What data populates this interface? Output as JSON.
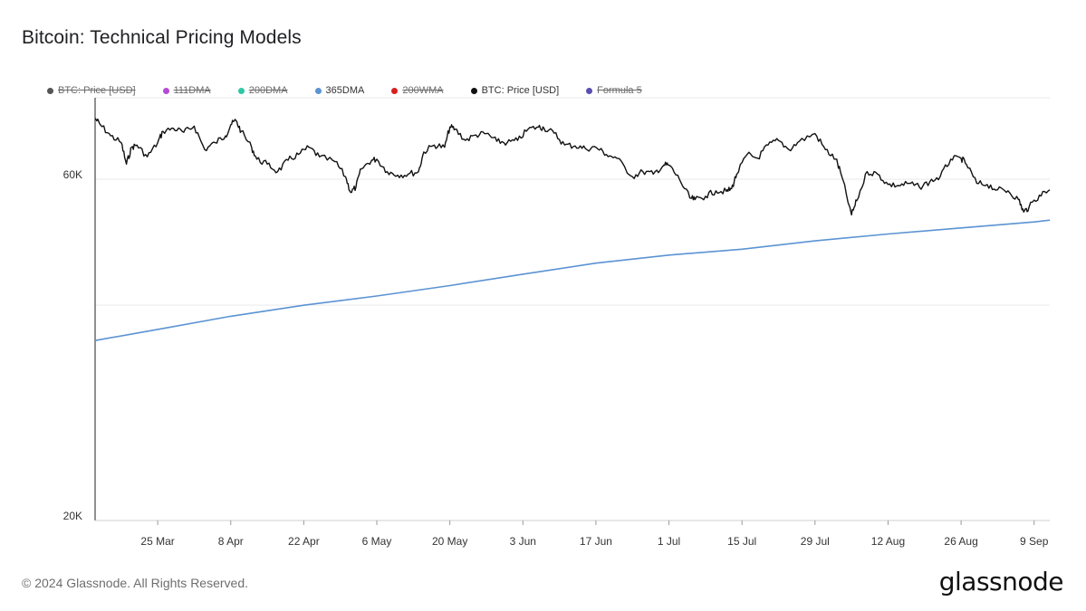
{
  "title": "Bitcoin: Technical Pricing Models",
  "legend": [
    {
      "label": "BTC: Price [USD]",
      "color": "#555555",
      "disabled": true
    },
    {
      "label": "111DMA",
      "color": "#b44ad6",
      "disabled": true
    },
    {
      "label": "200DMA",
      "color": "#2fc7a6",
      "disabled": true
    },
    {
      "label": "365DMA",
      "color": "#5b93d3",
      "disabled": false
    },
    {
      "label": "200WMA",
      "color": "#d81f1f",
      "disabled": true
    },
    {
      "label": "BTC: Price [USD]",
      "color": "#111111",
      "disabled": false
    },
    {
      "label": "Formula 5",
      "color": "#5a4fb0",
      "disabled": true
    }
  ],
  "footer": "© 2024 Glassnode. All Rights Reserved.",
  "brand": "glassnode",
  "chart_data": {
    "type": "line",
    "title": "Bitcoin: Technical Pricing Models",
    "y_scale": "log",
    "y_ticks": [
      {
        "value": 20000,
        "label": "20K"
      },
      {
        "value": 60000,
        "label": "60K"
      }
    ],
    "x_ticks": [
      {
        "date": "2024-03-25",
        "label": "25 Mar"
      },
      {
        "date": "2024-04-08",
        "label": "8 Apr"
      },
      {
        "date": "2024-04-22",
        "label": "22 Apr"
      },
      {
        "date": "2024-05-06",
        "label": "6 May"
      },
      {
        "date": "2024-05-20",
        "label": "20 May"
      },
      {
        "date": "2024-06-03",
        "label": "3 Jun"
      },
      {
        "date": "2024-06-17",
        "label": "17 Jun"
      },
      {
        "date": "2024-07-01",
        "label": "1 Jul"
      },
      {
        "date": "2024-07-15",
        "label": "15 Jul"
      },
      {
        "date": "2024-07-29",
        "label": "29 Jul"
      },
      {
        "date": "2024-08-12",
        "label": "12 Aug"
      },
      {
        "date": "2024-08-26",
        "label": "26 Aug"
      },
      {
        "date": "2024-09-09",
        "label": "9 Sep"
      }
    ],
    "x_range": [
      "2024-03-13",
      "2024-09-12"
    ],
    "y_range": [
      20000,
      78000
    ],
    "grid": true,
    "series": [
      {
        "name": "BTC: Price [USD]",
        "color": "#111111",
        "points": [
          [
            "2024-03-13",
            73000
          ],
          [
            "2024-03-14",
            71500
          ],
          [
            "2024-03-16",
            69000
          ],
          [
            "2024-03-18",
            67500
          ],
          [
            "2024-03-19",
            63000
          ],
          [
            "2024-03-20",
            66500
          ],
          [
            "2024-03-21",
            67000
          ],
          [
            "2024-03-23",
            64500
          ],
          [
            "2024-03-25",
            67500
          ],
          [
            "2024-03-26",
            70000
          ],
          [
            "2024-03-28",
            70700
          ],
          [
            "2024-03-30",
            69800
          ],
          [
            "2024-04-01",
            71200
          ],
          [
            "2024-04-03",
            66000
          ],
          [
            "2024-04-05",
            67500
          ],
          [
            "2024-04-07",
            69000
          ],
          [
            "2024-04-08",
            71500
          ],
          [
            "2024-04-09",
            72500
          ],
          [
            "2024-04-10",
            70000
          ],
          [
            "2024-04-12",
            66500
          ],
          [
            "2024-04-13",
            64000
          ],
          [
            "2024-04-15",
            63000
          ],
          [
            "2024-04-17",
            61500
          ],
          [
            "2024-04-19",
            63800
          ],
          [
            "2024-04-21",
            65000
          ],
          [
            "2024-04-23",
            66500
          ],
          [
            "2024-04-25",
            64500
          ],
          [
            "2024-04-28",
            63500
          ],
          [
            "2024-04-30",
            60500
          ],
          [
            "2024-05-01",
            57500
          ],
          [
            "2024-05-02",
            58500
          ],
          [
            "2024-05-03",
            62000
          ],
          [
            "2024-05-05",
            63800
          ],
          [
            "2024-05-06",
            64000
          ],
          [
            "2024-05-08",
            61500
          ],
          [
            "2024-05-10",
            60800
          ],
          [
            "2024-05-12",
            61000
          ],
          [
            "2024-05-14",
            61500
          ],
          [
            "2024-05-15",
            65500
          ],
          [
            "2024-05-17",
            67000
          ],
          [
            "2024-05-19",
            66500
          ],
          [
            "2024-05-20",
            71000
          ],
          [
            "2024-05-21",
            70500
          ],
          [
            "2024-05-23",
            68000
          ],
          [
            "2024-05-25",
            69200
          ],
          [
            "2024-05-27",
            69500
          ],
          [
            "2024-05-29",
            67800
          ],
          [
            "2024-05-31",
            67500
          ],
          [
            "2024-06-02",
            68000
          ],
          [
            "2024-06-04",
            70500
          ],
          [
            "2024-06-06",
            71000
          ],
          [
            "2024-06-07",
            70800
          ],
          [
            "2024-06-09",
            69600
          ],
          [
            "2024-06-11",
            67000
          ],
          [
            "2024-06-13",
            66800
          ],
          [
            "2024-06-15",
            66200
          ],
          [
            "2024-06-17",
            66500
          ],
          [
            "2024-06-19",
            65000
          ],
          [
            "2024-06-21",
            64200
          ],
          [
            "2024-06-24",
            60500
          ],
          [
            "2024-06-26",
            61500
          ],
          [
            "2024-06-28",
            61000
          ],
          [
            "2024-06-30",
            62800
          ],
          [
            "2024-07-01",
            62800
          ],
          [
            "2024-07-03",
            60000
          ],
          [
            "2024-07-05",
            56500
          ],
          [
            "2024-07-06",
            56200
          ],
          [
            "2024-07-08",
            56800
          ],
          [
            "2024-07-10",
            57800
          ],
          [
            "2024-07-12",
            57700
          ],
          [
            "2024-07-13",
            58200
          ],
          [
            "2024-07-14",
            61000
          ],
          [
            "2024-07-16",
            65000
          ],
          [
            "2024-07-18",
            64200
          ],
          [
            "2024-07-20",
            67000
          ],
          [
            "2024-07-22",
            68000
          ],
          [
            "2024-07-24",
            66000
          ],
          [
            "2024-07-26",
            67800
          ],
          [
            "2024-07-29",
            69500
          ],
          [
            "2024-07-31",
            66000
          ],
          [
            "2024-08-02",
            64000
          ],
          [
            "2024-08-03",
            61000
          ],
          [
            "2024-08-05",
            53500
          ],
          [
            "2024-08-06",
            56000
          ],
          [
            "2024-08-08",
            61500
          ],
          [
            "2024-08-10",
            61000
          ],
          [
            "2024-08-12",
            59000
          ],
          [
            "2024-08-14",
            58800
          ],
          [
            "2024-08-16",
            59200
          ],
          [
            "2024-08-18",
            58500
          ],
          [
            "2024-08-20",
            59500
          ],
          [
            "2024-08-22",
            60500
          ],
          [
            "2024-08-24",
            64000
          ],
          [
            "2024-08-26",
            64200
          ],
          [
            "2024-08-27",
            63000
          ],
          [
            "2024-08-29",
            59200
          ],
          [
            "2024-08-31",
            59000
          ],
          [
            "2024-09-02",
            58000
          ],
          [
            "2024-09-04",
            57800
          ],
          [
            "2024-09-06",
            56200
          ],
          [
            "2024-09-07",
            54000
          ],
          [
            "2024-09-08",
            54800
          ],
          [
            "2024-09-10",
            57000
          ],
          [
            "2024-09-12",
            58000
          ]
        ]
      },
      {
        "name": "365DMA",
        "color": "#5b93d3",
        "points": [
          [
            "2024-03-13",
            35700
          ],
          [
            "2024-03-25",
            37000
          ],
          [
            "2024-04-08",
            38600
          ],
          [
            "2024-04-22",
            40000
          ],
          [
            "2024-05-06",
            41200
          ],
          [
            "2024-05-20",
            42600
          ],
          [
            "2024-06-03",
            44200
          ],
          [
            "2024-06-17",
            45800
          ],
          [
            "2024-07-01",
            47000
          ],
          [
            "2024-07-15",
            47900
          ],
          [
            "2024-07-29",
            49200
          ],
          [
            "2024-08-12",
            50300
          ],
          [
            "2024-08-26",
            51300
          ],
          [
            "2024-09-09",
            52300
          ],
          [
            "2024-09-12",
            52600
          ]
        ]
      }
    ]
  }
}
